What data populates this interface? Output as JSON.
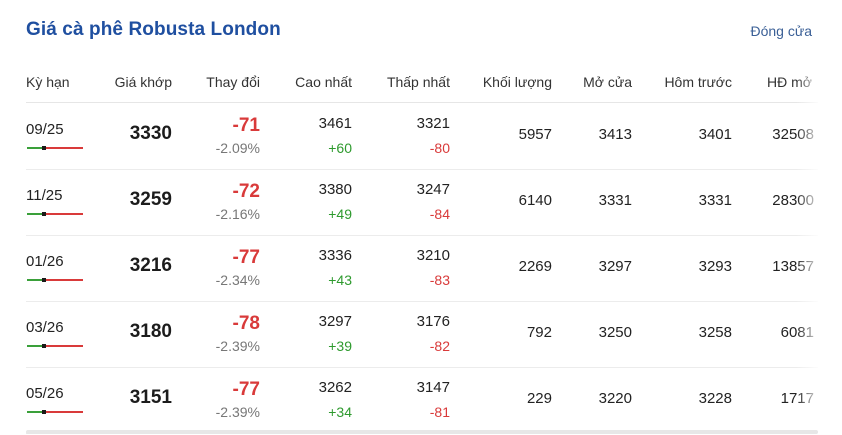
{
  "header": {
    "title": "Giá cà phê Robusta London",
    "status": "Đóng cửa"
  },
  "columns": [
    "Kỳ hạn",
    "Giá khớp",
    "Thay đổi",
    "Cao nhất",
    "Thấp nhất",
    "Khối lượng",
    "Mở cửa",
    "Hôm trước",
    "HĐ mở"
  ],
  "rows": [
    {
      "term": "09/25",
      "price": "3330",
      "change": "-71",
      "change_pct": "-2.09%",
      "high": "3461",
      "high_delta": "+60",
      "low": "3321",
      "low_delta": "-80",
      "volume": "5957",
      "open": "3413",
      "prev": "3401",
      "oi": "32508"
    },
    {
      "term": "11/25",
      "price": "3259",
      "change": "-72",
      "change_pct": "-2.16%",
      "high": "3380",
      "high_delta": "+49",
      "low": "3247",
      "low_delta": "-84",
      "volume": "6140",
      "open": "3331",
      "prev": "3331",
      "oi": "28300"
    },
    {
      "term": "01/26",
      "price": "3216",
      "change": "-77",
      "change_pct": "-2.34%",
      "high": "3336",
      "high_delta": "+43",
      "low": "3210",
      "low_delta": "-83",
      "volume": "2269",
      "open": "3297",
      "prev": "3293",
      "oi": "13857"
    },
    {
      "term": "03/26",
      "price": "3180",
      "change": "-78",
      "change_pct": "-2.39%",
      "high": "3297",
      "high_delta": "+39",
      "low": "3176",
      "low_delta": "-82",
      "volume": "792",
      "open": "3250",
      "prev": "3258",
      "oi": "6081"
    },
    {
      "term": "05/26",
      "price": "3151",
      "change": "-77",
      "change_pct": "-2.39%",
      "high": "3262",
      "high_delta": "+34",
      "low": "3147",
      "low_delta": "-81",
      "volume": "229",
      "open": "3220",
      "prev": "3228",
      "oi": "1717"
    }
  ],
  "colors": {
    "title": "#1f4fa0",
    "up": "#2e9a2e",
    "down": "#d93a3a"
  }
}
